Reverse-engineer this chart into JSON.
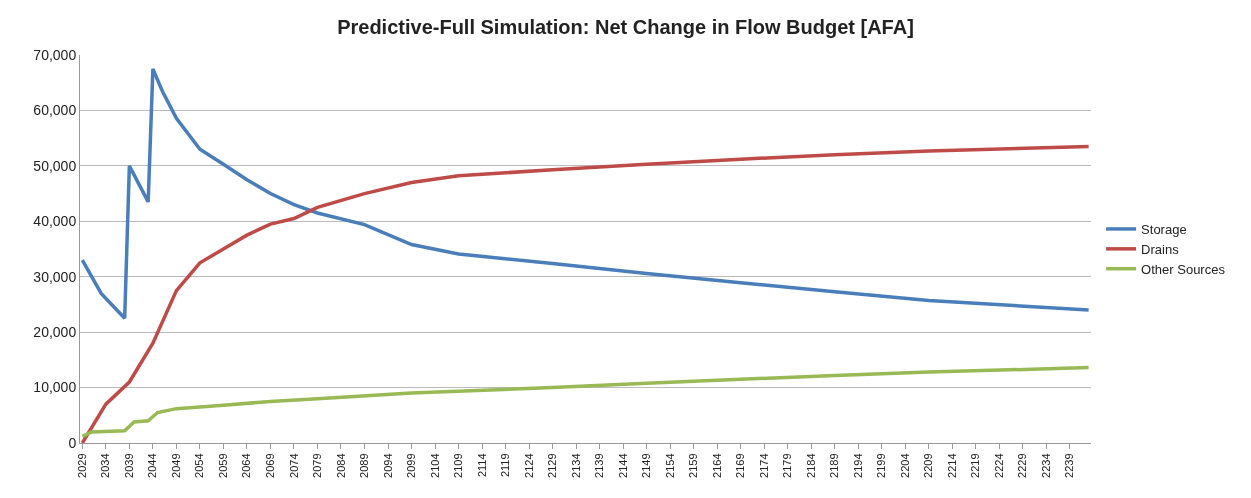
{
  "chart_data": {
    "type": "line",
    "title": "Predictive-Full Simulation: Net Change in Flow Budget [AFA]",
    "xlim": [
      2028.5,
      2243.5
    ],
    "xticks": [
      2029,
      2034,
      2039,
      2044,
      2049,
      2054,
      2059,
      2064,
      2069,
      2074,
      2079,
      2084,
      2089,
      2094,
      2099,
      2104,
      2109,
      2114,
      2119,
      2124,
      2129,
      2134,
      2139,
      2144,
      2149,
      2154,
      2159,
      2164,
      2169,
      2174,
      2179,
      2184,
      2189,
      2194,
      2199,
      2204,
      2209,
      2214,
      2219,
      2224,
      2229,
      2234,
      2239
    ],
    "ylim": [
      0,
      70000
    ],
    "yticks": [
      {
        "value": 0,
        "label": "0"
      },
      {
        "value": 10000,
        "label": "10,000"
      },
      {
        "value": 20000,
        "label": "20,000"
      },
      {
        "value": 30000,
        "label": "30,000"
      },
      {
        "value": 40000,
        "label": "40,000"
      },
      {
        "value": 50000,
        "label": "50,000"
      },
      {
        "value": 60000,
        "label": "60,000"
      },
      {
        "value": 70000,
        "label": "70,000"
      }
    ],
    "grid": "y",
    "legend": "right",
    "marker": "none",
    "line_style": "solid",
    "series": [
      {
        "name": "Storage",
        "color": "#4a7ebb",
        "x": [
          2029,
          2033,
          2038,
          2039,
          2043,
          2044,
          2046,
          2049,
          2054,
          2059,
          2064,
          2069,
          2074,
          2079,
          2089,
          2099,
          2109,
          2129,
          2149,
          2169,
          2189,
          2209,
          2243
        ],
        "values": [
          33000,
          27000,
          22500,
          50000,
          43500,
          67500,
          63500,
          58600,
          53000,
          50300,
          47500,
          45000,
          43000,
          41500,
          39400,
          35800,
          34100,
          32400,
          30600,
          28900,
          27300,
          25700,
          24000
        ]
      },
      {
        "name": "Drains",
        "color": "#be4b48",
        "x": [
          2029,
          2034,
          2039,
          2044,
          2049,
          2054,
          2059,
          2064,
          2069,
          2074,
          2079,
          2089,
          2099,
          2109,
          2129,
          2149,
          2169,
          2189,
          2209,
          2243
        ],
        "values": [
          0,
          7000,
          11000,
          18000,
          27500,
          32500,
          35000,
          37500,
          39500,
          40500,
          42500,
          45000,
          47000,
          48200,
          49300,
          50300,
          51200,
          52000,
          52700,
          53500
        ]
      },
      {
        "name": "Other Sources",
        "color": "#98b954",
        "x": [
          2029,
          2031,
          2038,
          2040,
          2043,
          2045,
          2049,
          2059,
          2069,
          2079,
          2099,
          2129,
          2149,
          2169,
          2189,
          2209,
          2243
        ],
        "values": [
          1200,
          2000,
          2200,
          3800,
          4000,
          5500,
          6200,
          6800,
          7500,
          8000,
          9000,
          10000,
          10800,
          11500,
          12200,
          12800,
          13600
        ]
      }
    ]
  }
}
